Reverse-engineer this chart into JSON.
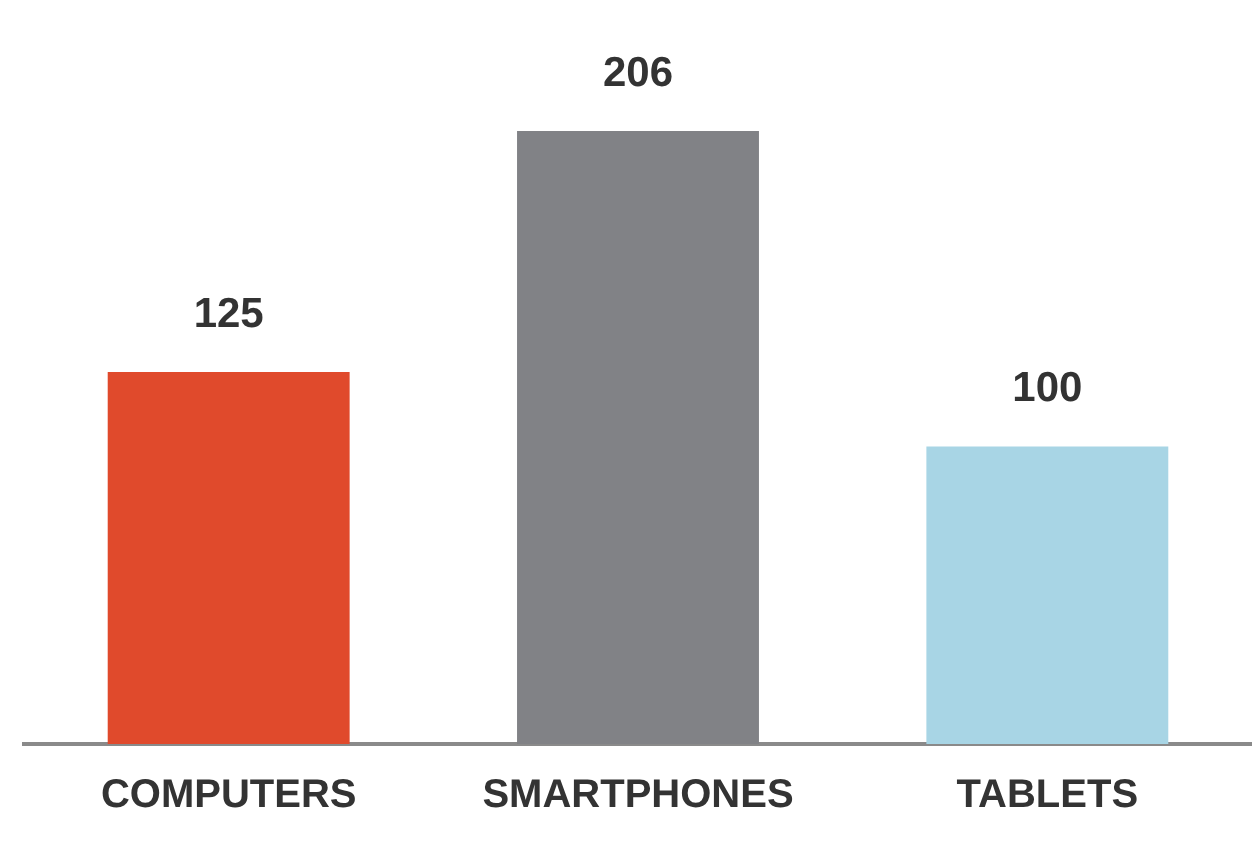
{
  "chart_data": {
    "type": "bar",
    "categories": [
      "COMPUTERS",
      "SMARTPHONES",
      "TABLETS"
    ],
    "values": [
      125,
      206,
      100
    ],
    "colors": [
      "#e04a2c",
      "#818286",
      "#a8d5e5"
    ],
    "data_labels": true,
    "grid": false,
    "legend": false
  }
}
